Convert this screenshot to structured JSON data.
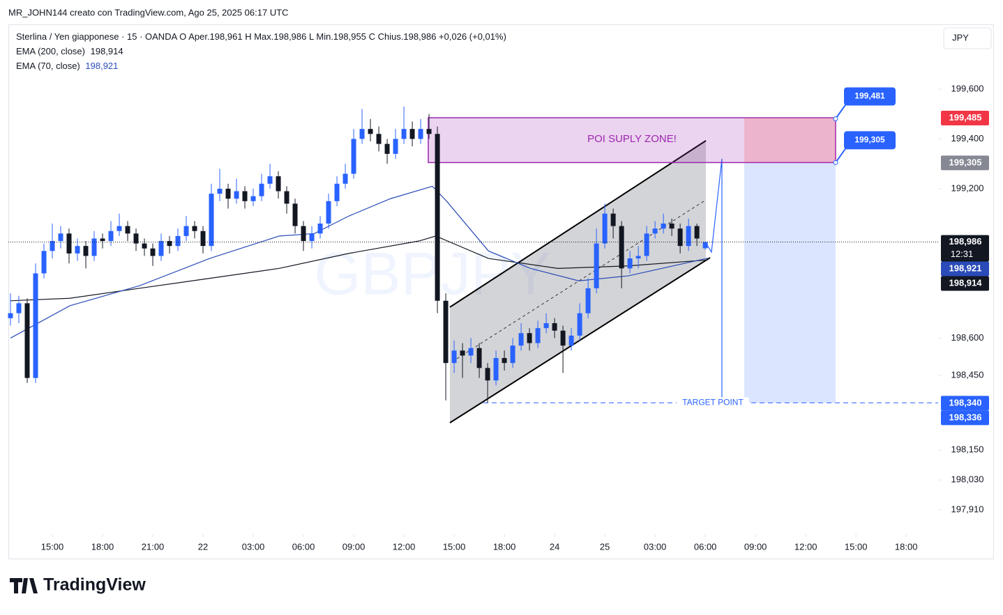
{
  "header": {
    "attribution": "MR_JOHN144 creato con TradingView.com, Ago 25, 2025 06:17 UTC",
    "symbol": "Sterlina / Yen giapponese · 15 · OANDA",
    "ohlc_legend": [
      {
        "key": "O",
        "value": "Aper.198,961"
      },
      {
        "key": "H",
        "value": "Max.198,986"
      },
      {
        "key": "L",
        "value": "Min.198,955"
      },
      {
        "key": "C",
        "value": "Chius.198,986"
      }
    ],
    "change": "+0,026 (+0,01%)",
    "brand": "TradingView"
  },
  "chart_data": {
    "type": "candlestick",
    "currency": "JPY",
    "watermark": "GBPJPY",
    "up_color": "#2962ff",
    "down_color": "#131722",
    "grid": false,
    "ohlc": [
      [
        198.68,
        198.78,
        198.65,
        198.7
      ],
      [
        198.7,
        198.77,
        198.66,
        198.74
      ],
      [
        198.74,
        198.76,
        198.42,
        198.44
      ],
      [
        198.44,
        198.9,
        198.42,
        198.86
      ],
      [
        198.86,
        198.98,
        198.84,
        198.95
      ],
      [
        198.95,
        199.06,
        198.92,
        198.99
      ],
      [
        198.99,
        199.05,
        198.96,
        199.02
      ],
      [
        199.02,
        199.04,
        198.9,
        198.94
      ],
      [
        198.94,
        199.0,
        198.91,
        198.97
      ],
      [
        198.97,
        198.99,
        198.88,
        198.93
      ],
      [
        198.93,
        199.03,
        198.91,
        199.0
      ],
      [
        199.0,
        199.02,
        198.96,
        198.99
      ],
      [
        198.99,
        199.07,
        198.97,
        199.03
      ],
      [
        199.03,
        199.1,
        199.01,
        199.05
      ],
      [
        199.05,
        199.07,
        198.99,
        199.02
      ],
      [
        199.02,
        199.04,
        198.95,
        198.98
      ],
      [
        198.98,
        199.0,
        198.93,
        198.96
      ],
      [
        198.96,
        198.98,
        198.89,
        198.93
      ],
      [
        198.93,
        199.02,
        198.91,
        198.99
      ],
      [
        198.99,
        199.01,
        198.94,
        198.97
      ],
      [
        198.97,
        199.04,
        198.95,
        199.01
      ],
      [
        199.01,
        199.09,
        198.99,
        199.05
      ],
      [
        199.05,
        199.07,
        199.0,
        199.03
      ],
      [
        199.03,
        199.05,
        198.94,
        198.97
      ],
      [
        198.97,
        199.22,
        198.95,
        199.18
      ],
      [
        199.18,
        199.28,
        199.15,
        199.2
      ],
      [
        199.2,
        199.22,
        199.12,
        199.16
      ],
      [
        199.16,
        199.24,
        199.14,
        199.19
      ],
      [
        199.19,
        199.21,
        199.12,
        199.15
      ],
      [
        199.15,
        199.2,
        199.13,
        199.17
      ],
      [
        199.17,
        199.26,
        199.15,
        199.22
      ],
      [
        199.22,
        199.3,
        199.2,
        199.25
      ],
      [
        199.25,
        199.27,
        199.16,
        199.19
      ],
      [
        199.19,
        199.21,
        199.1,
        199.14
      ],
      [
        199.14,
        199.16,
        199.02,
        199.05
      ],
      [
        199.05,
        199.07,
        198.95,
        198.99
      ],
      [
        198.99,
        199.05,
        198.96,
        199.02
      ],
      [
        199.02,
        199.09,
        199.0,
        199.06
      ],
      [
        199.06,
        199.18,
        199.04,
        199.15
      ],
      [
        199.15,
        199.25,
        199.13,
        199.22
      ],
      [
        199.22,
        199.3,
        199.2,
        199.26
      ],
      [
        199.26,
        199.44,
        199.24,
        199.4
      ],
      [
        199.4,
        199.52,
        199.38,
        199.44
      ],
      [
        199.44,
        199.48,
        199.39,
        199.42
      ],
      [
        199.42,
        199.45,
        199.35,
        199.38
      ],
      [
        199.38,
        199.4,
        199.3,
        199.34
      ],
      [
        199.34,
        199.44,
        199.32,
        199.4
      ],
      [
        199.4,
        199.53,
        199.38,
        199.44
      ],
      [
        199.44,
        199.47,
        199.37,
        199.4
      ],
      [
        199.4,
        199.48,
        199.38,
        199.44
      ],
      [
        199.44,
        199.5,
        199.4,
        199.42
      ],
      [
        199.42,
        199.45,
        198.7,
        198.75
      ],
      [
        198.75,
        198.78,
        198.35,
        198.5
      ],
      [
        198.5,
        198.59,
        198.46,
        198.55
      ],
      [
        198.55,
        198.58,
        198.44,
        198.53
      ],
      [
        198.53,
        198.6,
        198.5,
        198.56
      ],
      [
        198.56,
        198.58,
        198.44,
        198.48
      ],
      [
        198.48,
        198.5,
        198.34,
        198.43
      ],
      [
        198.43,
        198.55,
        198.41,
        198.52
      ],
      [
        198.52,
        198.55,
        198.47,
        198.5
      ],
      [
        198.5,
        198.6,
        198.48,
        198.57
      ],
      [
        198.57,
        198.66,
        198.55,
        198.62
      ],
      [
        198.62,
        198.64,
        198.55,
        198.58
      ],
      [
        198.58,
        198.67,
        198.56,
        198.64
      ],
      [
        198.64,
        198.7,
        198.62,
        198.66
      ],
      [
        198.66,
        198.68,
        198.6,
        198.63
      ],
      [
        198.63,
        198.65,
        198.46,
        198.57
      ],
      [
        198.57,
        198.64,
        198.55,
        198.61
      ],
      [
        198.61,
        198.74,
        198.59,
        198.7
      ],
      [
        198.7,
        198.84,
        198.68,
        198.8
      ],
      [
        198.8,
        199.04,
        198.78,
        198.98
      ],
      [
        198.98,
        199.14,
        198.96,
        199.1
      ],
      [
        199.1,
        199.12,
        199.0,
        199.05
      ],
      [
        199.05,
        199.07,
        198.8,
        198.88
      ],
      [
        198.88,
        198.95,
        198.86,
        198.92
      ],
      [
        198.92,
        198.97,
        198.88,
        198.93
      ],
      [
        198.93,
        199.05,
        198.91,
        199.02
      ],
      [
        199.02,
        199.07,
        199.0,
        199.04
      ],
      [
        199.04,
        199.1,
        199.02,
        199.06
      ],
      [
        199.06,
        199.08,
        199.01,
        199.04
      ],
      [
        199.04,
        199.06,
        198.94,
        198.97
      ],
      [
        198.97,
        199.08,
        198.95,
        199.05
      ],
      [
        199.05,
        199.06,
        198.97,
        199.0
      ],
      [
        198.961,
        198.986,
        198.955,
        198.986
      ]
    ],
    "series": [
      {
        "name": "EMA (200, close)",
        "color": "#131722",
        "value_label": "198,914",
        "x": [
          0,
          7.1,
          15.4,
          23.8,
          32.1,
          40.4,
          48.8,
          50.8,
          57.1,
          65.4,
          73.8,
          83.3
        ],
        "values": [
          198.75,
          198.76,
          198.8,
          198.84,
          198.88,
          198.94,
          198.99,
          199.01,
          198.92,
          198.88,
          198.89,
          198.914
        ]
      },
      {
        "name": "EMA (70, close)",
        "color": "#2a4bb8",
        "value_label": "198,921",
        "x": [
          0,
          7.1,
          15.4,
          23.8,
          32.1,
          36.3,
          40.4,
          45.4,
          50.4,
          52.1,
          57.1,
          62.1,
          67.9,
          73.8,
          83.3
        ],
        "values": [
          198.6,
          198.73,
          198.81,
          198.92,
          199.01,
          199.02,
          199.09,
          199.16,
          199.21,
          199.15,
          198.95,
          198.88,
          198.83,
          198.85,
          198.921
        ]
      }
    ],
    "xlim": [
      -0.25,
      110.4
    ],
    "xticks": [
      {
        "value": 5,
        "label": "15:00"
      },
      {
        "value": 11,
        "label": "18:00"
      },
      {
        "value": 17,
        "label": "21:00"
      },
      {
        "value": 23,
        "label": "22"
      },
      {
        "value": 29,
        "label": "03:00"
      },
      {
        "value": 35,
        "label": "06:00"
      },
      {
        "value": 41,
        "label": "09:00"
      },
      {
        "value": 47,
        "label": "12:00"
      },
      {
        "value": 53,
        "label": "15:00"
      },
      {
        "value": 59,
        "label": "18:00"
      },
      {
        "value": 65,
        "label": "24"
      },
      {
        "value": 71,
        "label": "25"
      },
      {
        "value": 77,
        "label": "03:00"
      },
      {
        "value": 83,
        "label": "06:00"
      },
      {
        "value": 89,
        "label": "09:00"
      },
      {
        "value": 95,
        "label": "12:00"
      },
      {
        "value": 101,
        "label": "15:00"
      },
      {
        "value": 107,
        "label": "18:00"
      }
    ],
    "ylim": [
      197.818,
      199.86
    ],
    "yticks": [
      {
        "value": 199.6,
        "label": "199,600"
      },
      {
        "value": 199.4,
        "label": "199,400"
      },
      {
        "value": 199.2,
        "label": "199,200"
      },
      {
        "value": 198.6,
        "label": "198,600"
      },
      {
        "value": 198.45,
        "label": "198,450"
      },
      {
        "value": 198.15,
        "label": "198,150"
      },
      {
        "value": 198.03,
        "label": "198,030"
      },
      {
        "value": 197.91,
        "label": "197,910"
      }
    ],
    "zone": {
      "label": "POI SUPLY ZONE!",
      "top": 199.485,
      "bottom": 199.305
    },
    "target": {
      "label": "TARGET POINT",
      "value": 198.34
    },
    "callouts": [
      {
        "value": 199.481,
        "label": "199,481"
      },
      {
        "value": 199.305,
        "label": "199,305"
      }
    ],
    "current_price": {
      "value": 198.986,
      "label": "198,986",
      "countdown": "12:31"
    },
    "price_labels": [
      {
        "value": 199.485,
        "label": "199,485",
        "color": "#f23645"
      },
      {
        "value": 199.305,
        "label": "199,305",
        "color": "#868993"
      },
      {
        "value": 198.921,
        "label": "198,921",
        "color": "#2a4bb8"
      },
      {
        "value": 198.914,
        "label": "198,914",
        "color": "#131722"
      },
      {
        "value": 198.34,
        "label": "198,340",
        "color": "#2962ff"
      },
      {
        "value": 198.336,
        "label": "198,336",
        "color": "#2962ff"
      }
    ]
  }
}
